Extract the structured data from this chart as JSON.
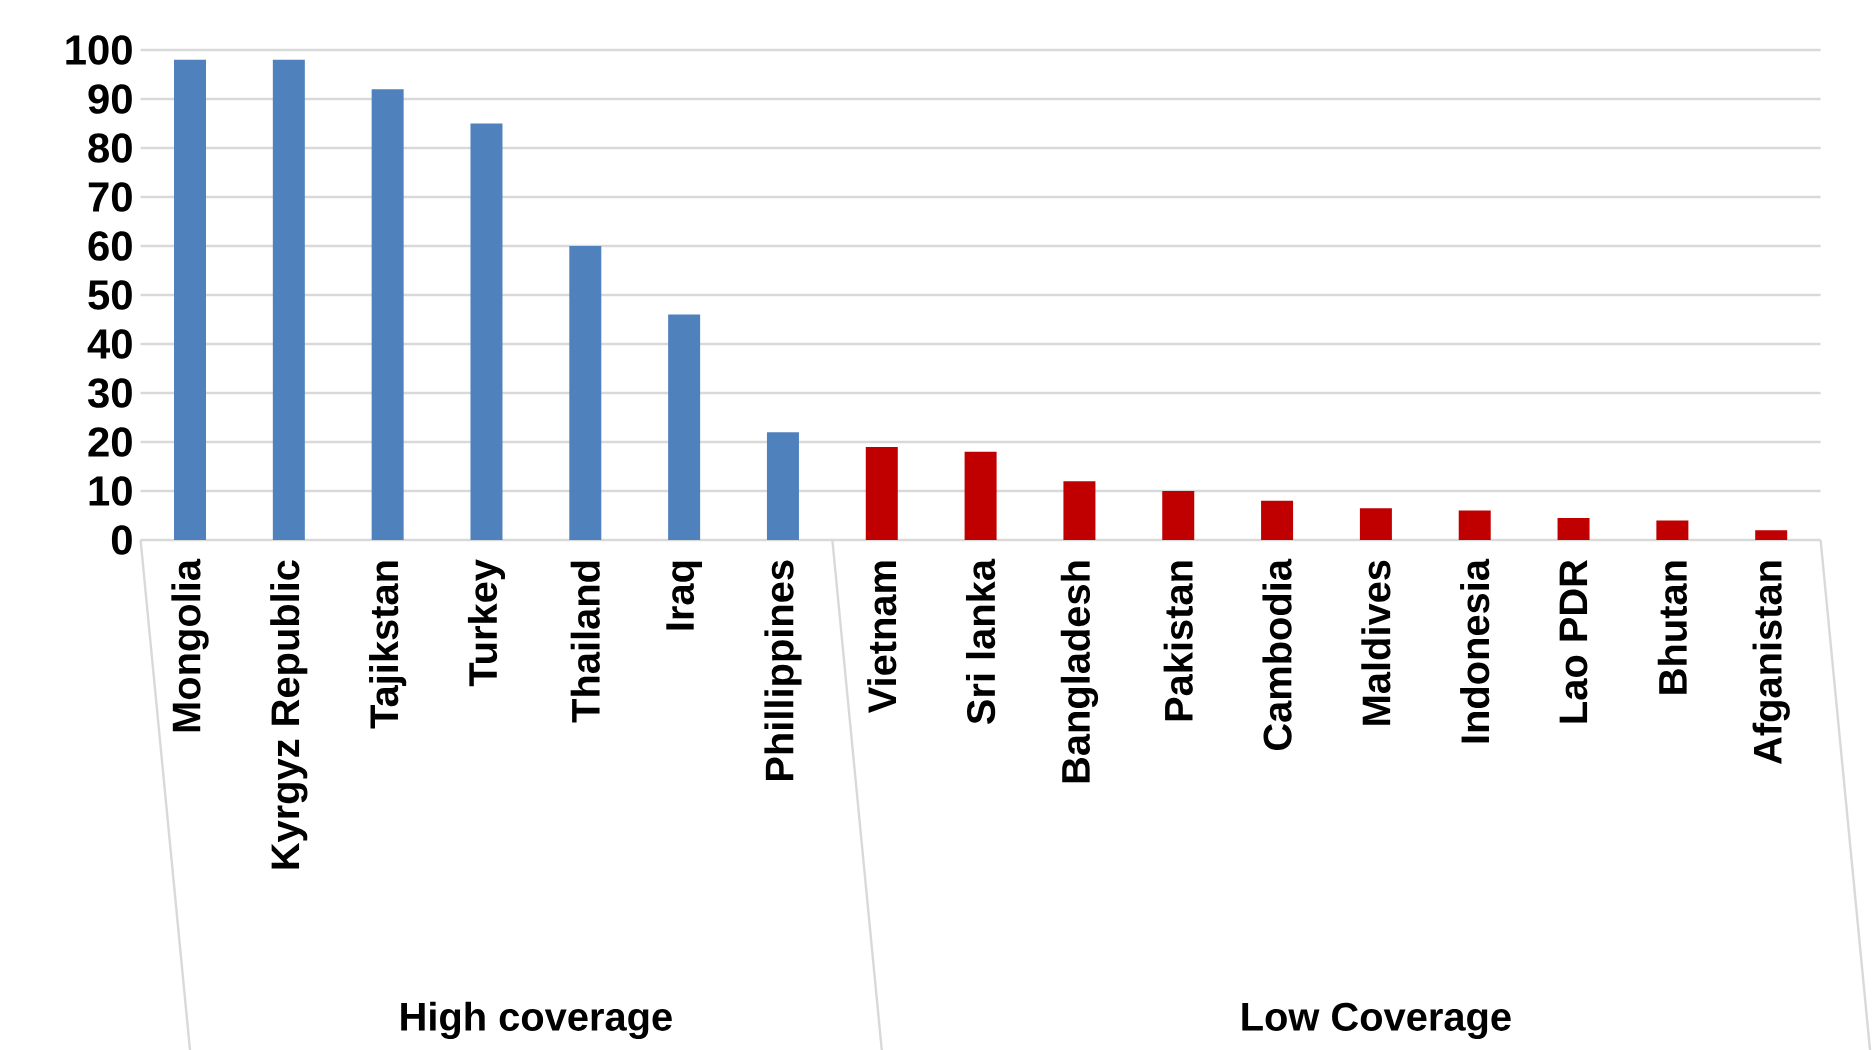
{
  "chart_data": {
    "type": "bar",
    "categories": [
      "Mongolia",
      "Kyrgyz Republic",
      "Tajikstan",
      "Turkey",
      "Thailand",
      "Iraq",
      "Phillippines",
      "Vietnam",
      "Sri lanka",
      "Bangladesh",
      "Pakistan",
      "Cambodia",
      "Maldives",
      "Indonesia",
      "Lao PDR",
      "Bhutan",
      "Afganistan"
    ],
    "values": [
      98,
      98,
      92,
      85,
      60,
      46,
      22,
      19,
      18,
      12,
      10,
      8,
      6.5,
      6,
      4.5,
      4,
      2
    ],
    "colors": [
      "#4f81bd",
      "#4f81bd",
      "#4f81bd",
      "#4f81bd",
      "#4f81bd",
      "#4f81bd",
      "#4f81bd",
      "#c00000",
      "#c00000",
      "#c00000",
      "#c00000",
      "#c00000",
      "#c00000",
      "#c00000",
      "#c00000",
      "#c00000",
      "#c00000"
    ],
    "annotations": [
      "High coverage",
      "Low Coverage"
    ],
    "ylim": [
      0,
      100
    ],
    "yticks": [
      0,
      10,
      20,
      30,
      40,
      50,
      60,
      70,
      80,
      90,
      100
    ],
    "grid": "y"
  }
}
